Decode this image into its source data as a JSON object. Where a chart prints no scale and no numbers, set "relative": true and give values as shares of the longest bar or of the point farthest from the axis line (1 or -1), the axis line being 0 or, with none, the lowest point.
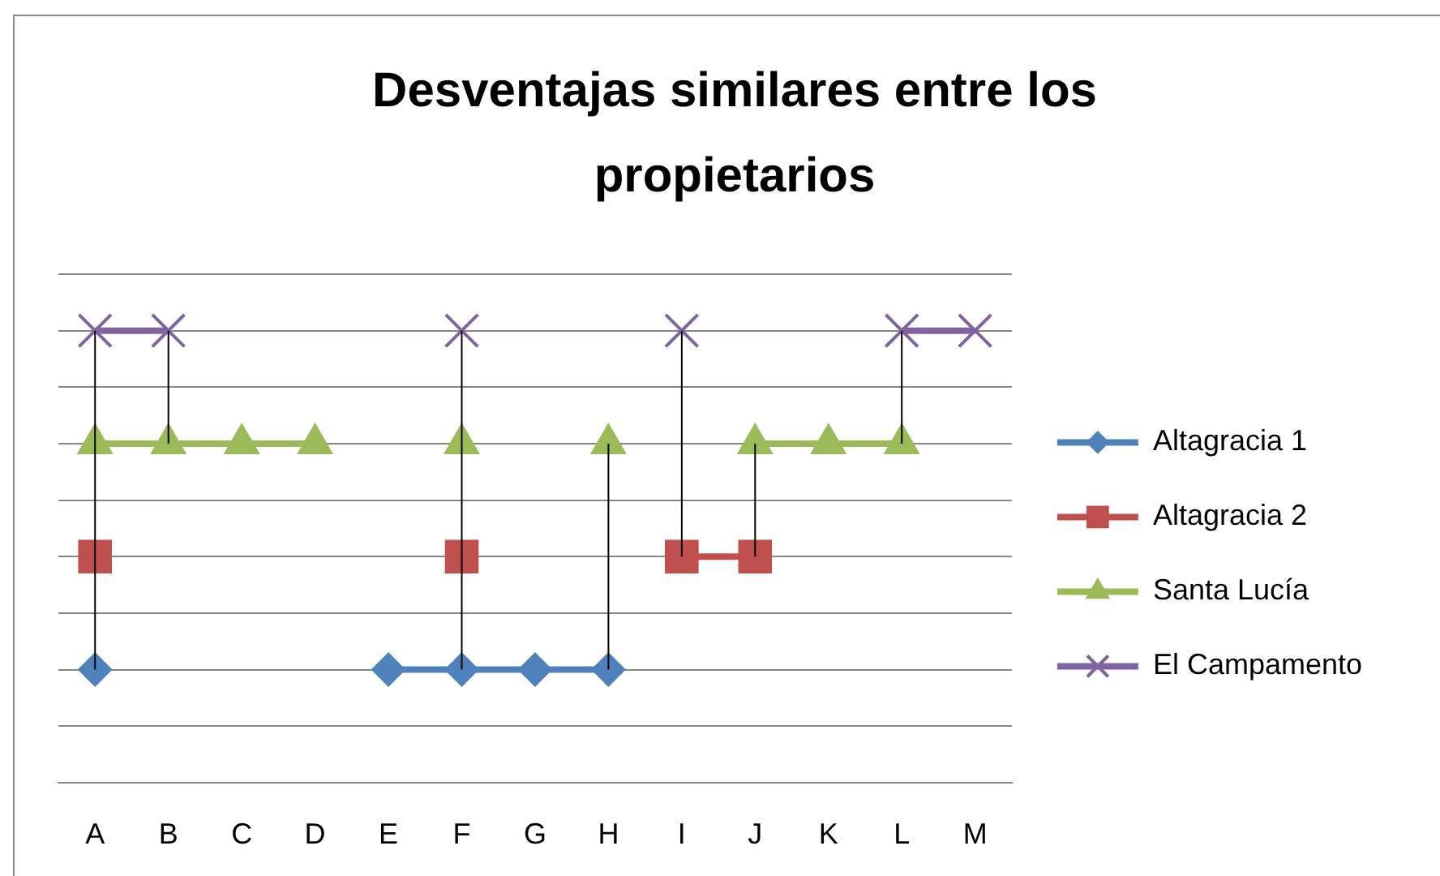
{
  "chart_data": {
    "type": "line",
    "title": "Desventajas similares entre los propietarios",
    "relative": true,
    "grid": "y",
    "legend": "right",
    "categories": [
      "A",
      "B",
      "C",
      "D",
      "E",
      "F",
      "G",
      "H",
      "I",
      "J",
      "K",
      "L",
      "M"
    ],
    "series": [
      {
        "name": "Altagracia 1",
        "color": "#4f81bd",
        "marker": "diamond",
        "values": [
          0.25,
          null,
          null,
          null,
          0.25,
          0.25,
          0.25,
          0.25,
          null,
          null,
          null,
          null,
          null
        ]
      },
      {
        "name": "Altagracia 2",
        "color": "#c0504d",
        "marker": "square",
        "values": [
          0.5,
          null,
          null,
          null,
          null,
          0.5,
          null,
          null,
          0.5,
          0.5,
          null,
          null,
          null
        ]
      },
      {
        "name": "Santa Lucía",
        "color": "#9bbb59",
        "marker": "triangle",
        "values": [
          0.75,
          0.75,
          0.75,
          0.75,
          null,
          0.75,
          null,
          0.75,
          null,
          0.75,
          0.75,
          0.75,
          null
        ]
      },
      {
        "name": "El Campamento",
        "color": "#8064a2",
        "marker": "cross",
        "values": [
          1,
          1,
          null,
          null,
          null,
          1,
          null,
          null,
          1,
          null,
          null,
          1,
          1
        ]
      },
      {
        "color": "#000000",
        "marker": "none",
        "x": [
          "A",
          "A"
        ],
        "values": [
          0.25,
          1
        ]
      },
      {
        "color": "#000000",
        "marker": "none",
        "x": [
          "B",
          "B"
        ],
        "values": [
          0.75,
          1
        ]
      },
      {
        "color": "#000000",
        "marker": "none",
        "x": [
          "F",
          "F"
        ],
        "values": [
          0.25,
          1
        ]
      },
      {
        "color": "#000000",
        "marker": "none",
        "x": [
          "H",
          "H"
        ],
        "values": [
          0.25,
          0.75
        ]
      },
      {
        "color": "#000000",
        "marker": "none",
        "x": [
          "I",
          "I"
        ],
        "values": [
          0.5,
          1
        ]
      },
      {
        "color": "#000000",
        "marker": "none",
        "x": [
          "J",
          "J"
        ],
        "values": [
          0.5,
          0.75
        ]
      },
      {
        "color": "#000000",
        "marker": "none",
        "x": [
          "L",
          "L"
        ],
        "values": [
          0.75,
          1
        ]
      }
    ]
  }
}
